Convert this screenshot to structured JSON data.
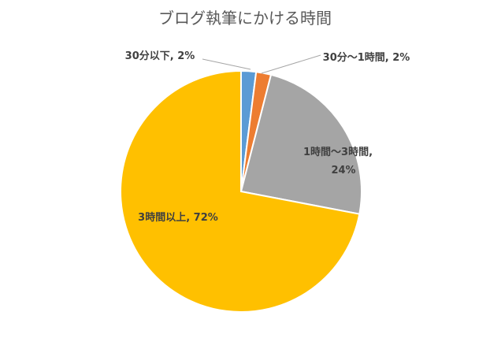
{
  "chart_data": {
    "type": "pie",
    "title": "ブログ執筆にかける時間",
    "slices": [
      {
        "label": "30分以下",
        "value": 2,
        "value_text": "2%",
        "color": "#5B9BD5"
      },
      {
        "label": "30分〜1時間",
        "value": 2,
        "value_text": "2%",
        "color": "#ED7D31"
      },
      {
        "label": "1時間〜3時間",
        "value": 24,
        "value_text": "24%",
        "color": "#A5A5A5"
      },
      {
        "label": "3時間以上",
        "value": 72,
        "value_text": "72%",
        "color": "#FFC000"
      }
    ],
    "legend": "none",
    "start_angle": "12 o'clock",
    "direction": "clockwise"
  }
}
